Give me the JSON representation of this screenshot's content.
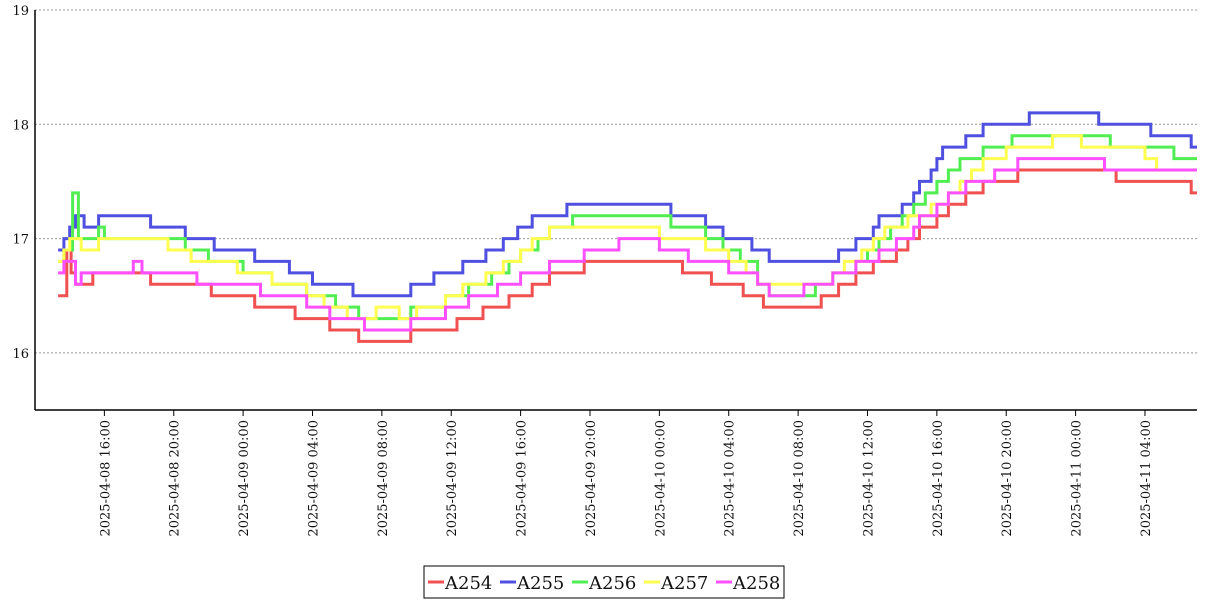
{
  "chart_data": {
    "type": "line",
    "step": true,
    "title": "",
    "xlabel": "",
    "ylabel": "",
    "ylim": [
      15.5,
      19
    ],
    "yticks": [
      16,
      17,
      18,
      19
    ],
    "xlim": [
      "2025-04-08 12:00",
      "2025-04-11 07:00"
    ],
    "xticks": [
      "2025-04-08 16:00",
      "2025-04-08 20:00",
      "2025-04-09 00:00",
      "2025-04-09 04:00",
      "2025-04-09 08:00",
      "2025-04-09 12:00",
      "2025-04-09 16:00",
      "2025-04-09 20:00",
      "2025-04-10 00:00",
      "2025-04-10 04:00",
      "2025-04-10 08:00",
      "2025-04-10 12:00",
      "2025-04-10 16:00",
      "2025-04-10 20:00",
      "2025-04-11 00:00",
      "2025-04-11 04:00"
    ],
    "grid": {
      "y": true,
      "x": false
    },
    "legend": {
      "position": "bottom-center"
    },
    "series": [
      {
        "name": "A254",
        "color": "#f05050",
        "points": [
          [
            "2025-04-08 13:20",
            16.5
          ],
          [
            "2025-04-08 13:50",
            16.9
          ],
          [
            "2025-04-08 14:05",
            16.7
          ],
          [
            "2025-04-08 14:20",
            16.6
          ],
          [
            "2025-04-08 15:20",
            16.7
          ],
          [
            "2025-04-08 18:40",
            16.6
          ],
          [
            "2025-04-08 22:10",
            16.5
          ],
          [
            "2025-04-09 00:40",
            16.4
          ],
          [
            "2025-04-09 03:00",
            16.3
          ],
          [
            "2025-04-09 05:00",
            16.2
          ],
          [
            "2025-04-09 06:40",
            16.1
          ],
          [
            "2025-04-09 09:40",
            16.2
          ],
          [
            "2025-04-09 12:20",
            16.3
          ],
          [
            "2025-04-09 13:50",
            16.4
          ],
          [
            "2025-04-09 15:20",
            16.5
          ],
          [
            "2025-04-09 16:40",
            16.6
          ],
          [
            "2025-04-09 17:40",
            16.7
          ],
          [
            "2025-04-09 19:40",
            16.8
          ],
          [
            "2025-04-10 01:20",
            16.7
          ],
          [
            "2025-04-10 03:00",
            16.6
          ],
          [
            "2025-04-10 04:50",
            16.5
          ],
          [
            "2025-04-10 06:00",
            16.4
          ],
          [
            "2025-04-10 09:20",
            16.5
          ],
          [
            "2025-04-10 10:20",
            16.6
          ],
          [
            "2025-04-10 11:20",
            16.7
          ],
          [
            "2025-04-10 12:20",
            16.8
          ],
          [
            "2025-04-10 13:40",
            16.9
          ],
          [
            "2025-04-10 14:20",
            17.0
          ],
          [
            "2025-04-10 15:00",
            17.1
          ],
          [
            "2025-04-10 16:00",
            17.2
          ],
          [
            "2025-04-10 16:40",
            17.3
          ],
          [
            "2025-04-10 17:40",
            17.4
          ],
          [
            "2025-04-10 18:40",
            17.5
          ],
          [
            "2025-04-10 20:40",
            17.6
          ],
          [
            "2025-04-11 02:20",
            17.5
          ],
          [
            "2025-04-11 06:40",
            17.4
          ]
        ]
      },
      {
        "name": "A255",
        "color": "#5050e0",
        "points": [
          [
            "2025-04-08 13:20",
            16.9
          ],
          [
            "2025-04-08 13:40",
            17.0
          ],
          [
            "2025-04-08 14:00",
            17.1
          ],
          [
            "2025-04-08 14:20",
            17.2
          ],
          [
            "2025-04-08 14:50",
            17.1
          ],
          [
            "2025-04-08 15:40",
            17.2
          ],
          [
            "2025-04-08 18:40",
            17.1
          ],
          [
            "2025-04-08 20:40",
            17.0
          ],
          [
            "2025-04-08 22:20",
            16.9
          ],
          [
            "2025-04-09 00:40",
            16.8
          ],
          [
            "2025-04-09 02:40",
            16.7
          ],
          [
            "2025-04-09 04:00",
            16.6
          ],
          [
            "2025-04-09 06:20",
            16.5
          ],
          [
            "2025-04-09 09:40",
            16.6
          ],
          [
            "2025-04-09 11:00",
            16.7
          ],
          [
            "2025-04-09 12:40",
            16.8
          ],
          [
            "2025-04-09 14:00",
            16.9
          ],
          [
            "2025-04-09 15:00",
            17.0
          ],
          [
            "2025-04-09 15:50",
            17.1
          ],
          [
            "2025-04-09 16:40",
            17.2
          ],
          [
            "2025-04-09 18:40",
            17.3
          ],
          [
            "2025-04-10 00:40",
            17.2
          ],
          [
            "2025-04-10 02:40",
            17.1
          ],
          [
            "2025-04-10 03:40",
            17.0
          ],
          [
            "2025-04-10 05:20",
            16.9
          ],
          [
            "2025-04-10 06:20",
            16.8
          ],
          [
            "2025-04-10 10:20",
            16.9
          ],
          [
            "2025-04-10 11:20",
            17.0
          ],
          [
            "2025-04-10 12:20",
            17.1
          ],
          [
            "2025-04-10 12:40",
            17.2
          ],
          [
            "2025-04-10 14:00",
            17.3
          ],
          [
            "2025-04-10 14:40",
            17.4
          ],
          [
            "2025-04-10 15:00",
            17.5
          ],
          [
            "2025-04-10 15:40",
            17.6
          ],
          [
            "2025-04-10 16:00",
            17.7
          ],
          [
            "2025-04-10 16:20",
            17.8
          ],
          [
            "2025-04-10 17:40",
            17.9
          ],
          [
            "2025-04-10 18:40",
            18.0
          ],
          [
            "2025-04-10 21:20",
            18.1
          ],
          [
            "2025-04-11 01:20",
            18.0
          ],
          [
            "2025-04-11 04:20",
            17.9
          ],
          [
            "2025-04-11 06:40",
            17.8
          ]
        ]
      },
      {
        "name": "A256",
        "color": "#50ee50",
        "points": [
          [
            "2025-04-08 13:20",
            16.8
          ],
          [
            "2025-04-08 13:40",
            16.9
          ],
          [
            "2025-04-08 14:10",
            17.4
          ],
          [
            "2025-04-08 14:30",
            17.0
          ],
          [
            "2025-04-08 15:40",
            17.1
          ],
          [
            "2025-04-08 16:00",
            17.0
          ],
          [
            "2025-04-08 20:40",
            16.9
          ],
          [
            "2025-04-08 22:00",
            16.8
          ],
          [
            "2025-04-09 00:00",
            16.7
          ],
          [
            "2025-04-09 01:40",
            16.6
          ],
          [
            "2025-04-09 03:40",
            16.5
          ],
          [
            "2025-04-09 05:20",
            16.4
          ],
          [
            "2025-04-09 06:40",
            16.3
          ],
          [
            "2025-04-09 09:40",
            16.4
          ],
          [
            "2025-04-09 11:40",
            16.5
          ],
          [
            "2025-04-09 13:00",
            16.6
          ],
          [
            "2025-04-09 14:20",
            16.7
          ],
          [
            "2025-04-09 15:20",
            16.8
          ],
          [
            "2025-04-09 16:00",
            16.9
          ],
          [
            "2025-04-09 17:00",
            17.0
          ],
          [
            "2025-04-09 17:40",
            17.1
          ],
          [
            "2025-04-09 19:00",
            17.2
          ],
          [
            "2025-04-10 00:40",
            17.1
          ],
          [
            "2025-04-10 02:40",
            17.0
          ],
          [
            "2025-04-10 03:40",
            16.9
          ],
          [
            "2025-04-10 04:40",
            16.8
          ],
          [
            "2025-04-10 05:40",
            16.6
          ],
          [
            "2025-04-10 06:20",
            16.5
          ],
          [
            "2025-04-10 09:00",
            16.6
          ],
          [
            "2025-04-10 10:00",
            16.7
          ],
          [
            "2025-04-10 11:20",
            16.8
          ],
          [
            "2025-04-10 12:00",
            16.9
          ],
          [
            "2025-04-10 12:40",
            17.0
          ],
          [
            "2025-04-10 13:20",
            17.1
          ],
          [
            "2025-04-10 14:00",
            17.2
          ],
          [
            "2025-04-10 14:40",
            17.3
          ],
          [
            "2025-04-10 15:20",
            17.4
          ],
          [
            "2025-04-10 16:00",
            17.5
          ],
          [
            "2025-04-10 16:40",
            17.6
          ],
          [
            "2025-04-10 17:20",
            17.7
          ],
          [
            "2025-04-10 18:40",
            17.8
          ],
          [
            "2025-04-10 20:20",
            17.9
          ],
          [
            "2025-04-11 02:00",
            17.8
          ],
          [
            "2025-04-11 05:40",
            17.7
          ]
        ]
      },
      {
        "name": "A257",
        "color": "#ffff50",
        "points": [
          [
            "2025-04-08 13:20",
            16.8
          ],
          [
            "2025-04-08 13:40",
            16.9
          ],
          [
            "2025-04-08 14:00",
            17.0
          ],
          [
            "2025-04-08 14:40",
            16.9
          ],
          [
            "2025-04-08 15:40",
            17.0
          ],
          [
            "2025-04-08 19:40",
            16.9
          ],
          [
            "2025-04-08 21:00",
            16.8
          ],
          [
            "2025-04-08 23:40",
            16.7
          ],
          [
            "2025-04-09 01:40",
            16.6
          ],
          [
            "2025-04-09 03:40",
            16.5
          ],
          [
            "2025-04-09 04:40",
            16.4
          ],
          [
            "2025-04-09 06:00",
            16.3
          ],
          [
            "2025-04-09 07:40",
            16.4
          ],
          [
            "2025-04-09 09:00",
            16.3
          ],
          [
            "2025-04-09 10:00",
            16.4
          ],
          [
            "2025-04-09 11:40",
            16.5
          ],
          [
            "2025-04-09 12:40",
            16.6
          ],
          [
            "2025-04-09 14:00",
            16.7
          ],
          [
            "2025-04-09 15:00",
            16.8
          ],
          [
            "2025-04-09 16:00",
            16.9
          ],
          [
            "2025-04-09 16:40",
            17.0
          ],
          [
            "2025-04-09 17:40",
            17.1
          ],
          [
            "2025-04-10 00:00",
            17.0
          ],
          [
            "2025-04-10 02:40",
            16.9
          ],
          [
            "2025-04-10 04:00",
            16.8
          ],
          [
            "2025-04-10 05:00",
            16.7
          ],
          [
            "2025-04-10 05:40",
            16.6
          ],
          [
            "2025-04-10 10:00",
            16.7
          ],
          [
            "2025-04-10 10:40",
            16.8
          ],
          [
            "2025-04-10 11:40",
            16.9
          ],
          [
            "2025-04-10 12:20",
            17.0
          ],
          [
            "2025-04-10 13:00",
            17.1
          ],
          [
            "2025-04-10 14:20",
            17.2
          ],
          [
            "2025-04-10 15:40",
            17.3
          ],
          [
            "2025-04-10 16:40",
            17.4
          ],
          [
            "2025-04-10 17:20",
            17.5
          ],
          [
            "2025-04-10 18:00",
            17.6
          ],
          [
            "2025-04-10 18:40",
            17.7
          ],
          [
            "2025-04-10 20:00",
            17.8
          ],
          [
            "2025-04-10 22:40",
            17.9
          ],
          [
            "2025-04-11 00:20",
            17.8
          ],
          [
            "2025-04-11 04:00",
            17.7
          ],
          [
            "2025-04-11 04:40",
            17.6
          ]
        ]
      },
      {
        "name": "A258",
        "color": "#ff50ff",
        "points": [
          [
            "2025-04-08 13:20",
            16.7
          ],
          [
            "2025-04-08 13:40",
            16.8
          ],
          [
            "2025-04-08 14:20",
            16.6
          ],
          [
            "2025-04-08 14:40",
            16.7
          ],
          [
            "2025-04-08 17:40",
            16.8
          ],
          [
            "2025-04-08 18:10",
            16.7
          ],
          [
            "2025-04-08 21:20",
            16.6
          ],
          [
            "2025-04-09 01:00",
            16.5
          ],
          [
            "2025-04-09 03:40",
            16.4
          ],
          [
            "2025-04-09 05:00",
            16.3
          ],
          [
            "2025-04-09 07:00",
            16.2
          ],
          [
            "2025-04-09 09:40",
            16.3
          ],
          [
            "2025-04-09 11:40",
            16.4
          ],
          [
            "2025-04-09 13:00",
            16.5
          ],
          [
            "2025-04-09 14:40",
            16.6
          ],
          [
            "2025-04-09 16:00",
            16.7
          ],
          [
            "2025-04-09 17:40",
            16.8
          ],
          [
            "2025-04-09 19:40",
            16.9
          ],
          [
            "2025-04-09 21:40",
            17.0
          ],
          [
            "2025-04-10 00:00",
            16.9
          ],
          [
            "2025-04-10 01:40",
            16.8
          ],
          [
            "2025-04-10 04:00",
            16.7
          ],
          [
            "2025-04-10 05:40",
            16.6
          ],
          [
            "2025-04-10 06:20",
            16.5
          ],
          [
            "2025-04-10 08:20",
            16.6
          ],
          [
            "2025-04-10 10:00",
            16.7
          ],
          [
            "2025-04-10 11:20",
            16.8
          ],
          [
            "2025-04-10 12:40",
            16.9
          ],
          [
            "2025-04-10 13:40",
            17.0
          ],
          [
            "2025-04-10 14:40",
            17.1
          ],
          [
            "2025-04-10 15:00",
            17.2
          ],
          [
            "2025-04-10 16:00",
            17.3
          ],
          [
            "2025-04-10 16:40",
            17.4
          ],
          [
            "2025-04-10 17:40",
            17.5
          ],
          [
            "2025-04-10 19:20",
            17.6
          ],
          [
            "2025-04-10 20:40",
            17.7
          ],
          [
            "2025-04-11 01:40",
            17.6
          ]
        ]
      }
    ]
  }
}
